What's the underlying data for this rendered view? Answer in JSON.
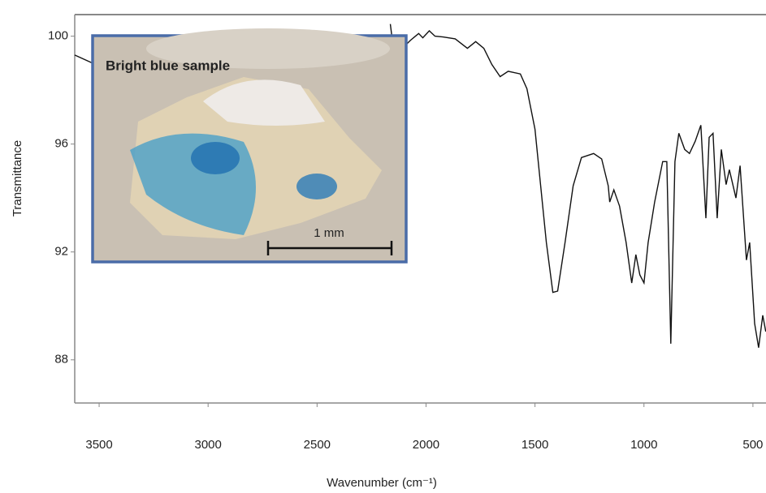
{
  "chart_data": {
    "type": "line",
    "x_label": "Wavenumber (cm⁻¹)",
    "y_label": "Transmittance",
    "annotations": [
      "Bright blue sample",
      "1 mm"
    ],
    "x": [
      3612,
      3530,
      3000,
      2164,
      2157,
      2127,
      2090,
      2071,
      2034,
      2015,
      1985,
      1959,
      1922,
      1866,
      1810,
      1772,
      1735,
      1698,
      1660,
      1623,
      1567,
      1537,
      1500,
      1474,
      1448,
      1418,
      1396,
      1362,
      1325,
      1287,
      1231,
      1194,
      1164,
      1157,
      1138,
      1112,
      1082,
      1056,
      1037,
      1019,
      1000,
      981,
      951,
      914,
      895,
      877,
      858,
      840,
      813,
      791,
      765,
      739,
      716,
      701,
      683,
      664,
      645,
      623,
      608,
      578,
      559,
      530,
      515,
      492,
      474,
      455,
      441
    ],
    "series": [
      {
        "name": "Bright blue sample",
        "color": "#111111",
        "values": [
          99.3,
          99.0,
          null,
          100.45,
          100,
          99.85,
          99.7,
          99.85,
          100.1,
          99.94,
          100.2,
          100,
          99.97,
          99.9,
          99.55,
          99.8,
          99.55,
          98.95,
          98.5,
          98.7,
          98.6,
          98.05,
          96.55,
          94.45,
          92.35,
          90.5,
          90.55,
          92.35,
          94.45,
          95.5,
          95.65,
          95.45,
          94.45,
          93.85,
          94.3,
          93.7,
          92.35,
          90.85,
          91.9,
          91.15,
          90.85,
          92.35,
          93.85,
          95.35,
          95.35,
          88.6,
          95.35,
          96.4,
          95.8,
          95.65,
          96.1,
          96.7,
          93.25,
          96.25,
          96.4,
          93.25,
          95.8,
          94.5,
          95.05,
          94,
          95.2,
          91.7,
          92.35,
          89.35,
          88.45,
          89.65,
          89.05
        ]
      }
    ],
    "xlim": [
      3612,
      440
    ],
    "ylim": [
      86.4,
      100.8
    ],
    "xticks": [
      3500,
      3000,
      2500,
      2000,
      1500,
      1000,
      500
    ],
    "yticks": [
      88,
      92,
      96,
      100
    ],
    "grid": false
  }
}
